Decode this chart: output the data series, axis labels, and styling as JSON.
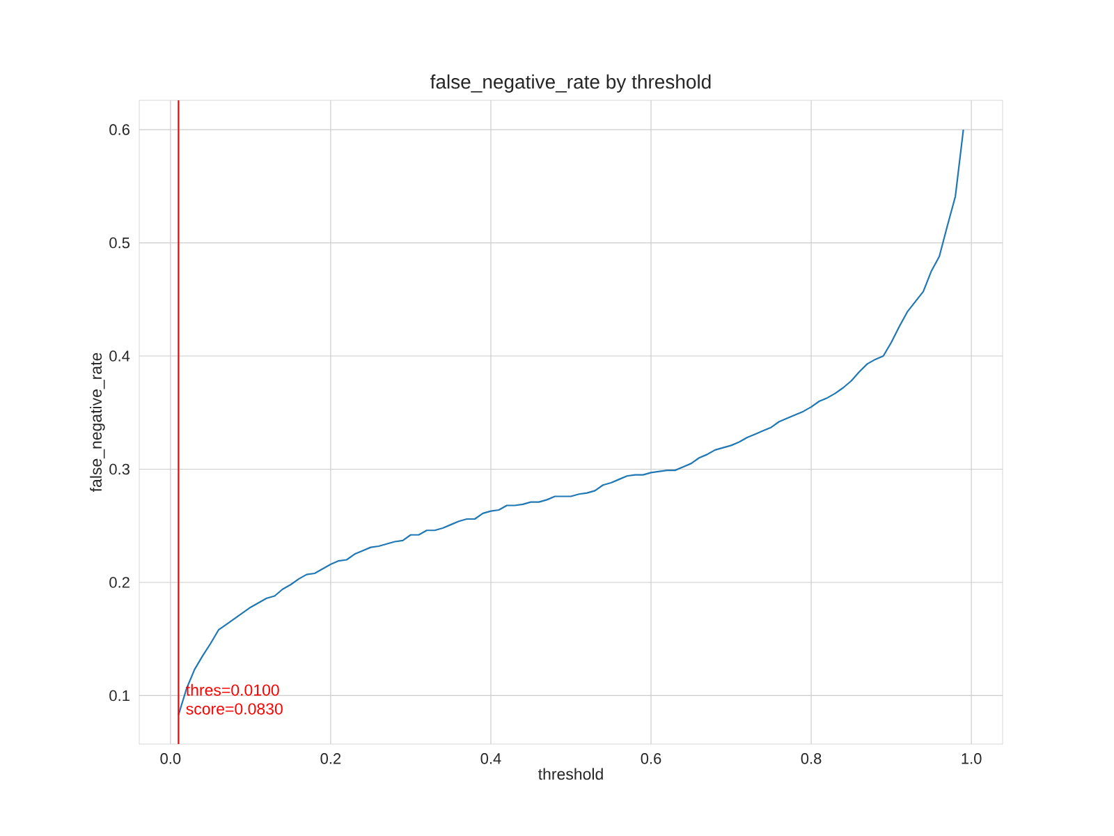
{
  "chart_data": {
    "type": "line",
    "title": "false_negative_rate by threshold",
    "xlabel": "threshold",
    "ylabel": "false_negative_rate",
    "x": [
      0.01,
      0.02,
      0.03,
      0.04,
      0.05,
      0.06,
      0.07,
      0.08,
      0.09,
      0.1,
      0.11,
      0.12,
      0.13,
      0.14,
      0.15,
      0.16,
      0.17,
      0.18,
      0.19,
      0.2,
      0.21,
      0.22,
      0.23,
      0.24,
      0.25,
      0.26,
      0.27,
      0.28,
      0.29,
      0.3,
      0.31,
      0.32,
      0.33,
      0.34,
      0.35,
      0.36,
      0.37,
      0.38,
      0.39,
      0.4,
      0.41,
      0.42,
      0.43,
      0.44,
      0.45,
      0.46,
      0.47,
      0.48,
      0.49,
      0.5,
      0.51,
      0.52,
      0.53,
      0.54,
      0.55,
      0.56,
      0.57,
      0.58,
      0.59,
      0.6,
      0.61,
      0.62,
      0.63,
      0.64,
      0.65,
      0.66,
      0.67,
      0.68,
      0.69,
      0.7,
      0.71,
      0.72,
      0.73,
      0.74,
      0.75,
      0.76,
      0.77,
      0.78,
      0.79,
      0.8,
      0.81,
      0.82,
      0.83,
      0.84,
      0.85,
      0.86,
      0.87,
      0.88,
      0.89,
      0.9,
      0.91,
      0.92,
      0.93,
      0.94,
      0.95,
      0.96,
      0.97,
      0.98,
      0.99
    ],
    "values": [
      0.083,
      0.106,
      0.123,
      0.135,
      0.146,
      0.158,
      0.163,
      0.168,
      0.173,
      0.178,
      0.182,
      0.186,
      0.188,
      0.194,
      0.198,
      0.203,
      0.207,
      0.208,
      0.212,
      0.216,
      0.219,
      0.22,
      0.225,
      0.228,
      0.231,
      0.232,
      0.234,
      0.236,
      0.237,
      0.242,
      0.242,
      0.246,
      0.246,
      0.248,
      0.251,
      0.254,
      0.256,
      0.256,
      0.261,
      0.263,
      0.264,
      0.268,
      0.268,
      0.269,
      0.271,
      0.271,
      0.273,
      0.276,
      0.276,
      0.276,
      0.278,
      0.279,
      0.281,
      0.286,
      0.288,
      0.291,
      0.294,
      0.295,
      0.295,
      0.297,
      0.298,
      0.299,
      0.299,
      0.302,
      0.305,
      0.31,
      0.313,
      0.317,
      0.319,
      0.321,
      0.324,
      0.328,
      0.331,
      0.334,
      0.337,
      0.342,
      0.345,
      0.348,
      0.351,
      0.355,
      0.36,
      0.363,
      0.367,
      0.372,
      0.378,
      0.386,
      0.393,
      0.397,
      0.4,
      0.412,
      0.426,
      0.439,
      0.448,
      0.457,
      0.475,
      0.488,
      0.515,
      0.541,
      0.6
    ],
    "color": "#1f77b4",
    "xlim": [
      -0.039,
      1.039
    ],
    "ylim": [
      0.0572,
      0.6259
    ],
    "xticks": [
      {
        "value": 0,
        "label": "0.0"
      },
      0.2,
      0.4,
      0.6,
      0.8,
      {
        "value": 1,
        "label": "1.0"
      }
    ],
    "yticks": [
      0.1,
      0.2,
      0.3,
      0.4,
      0.5,
      0.6
    ],
    "grid": true,
    "ref_lines": [
      {
        "axis": "x",
        "value": 0.01,
        "color": "#ff0000"
      }
    ],
    "annotations": [
      {
        "text": "thres=0.0100",
        "x": 0.01,
        "y": 0.083
      },
      {
        "text": "score=0.0830",
        "x": 0.01,
        "y": 0.083
      }
    ]
  }
}
